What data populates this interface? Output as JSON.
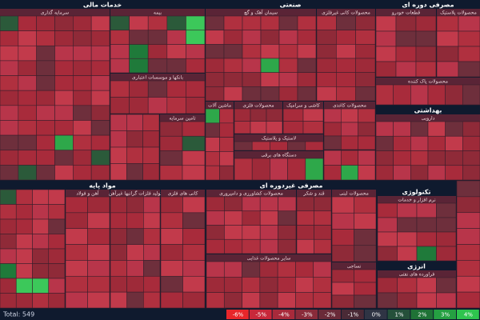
{
  "sectors": [
    {
      "title": "خدمات مالی",
      "groups": [
        {
          "title": "سرمایه گذاری"
        },
        {
          "title": "بیمه"
        },
        {
          "title": "بانکها و موسسات اعتباری"
        },
        {
          "title": "تامین سرمایه"
        }
      ]
    },
    {
      "title": "صنعتی",
      "groups": [
        {
          "title": "سیمان آهک و گچ"
        },
        {
          "title": "محصولات کانی غیرفلزی"
        },
        {
          "title": "ماشین آلات"
        },
        {
          "title": "محصولات فلزی"
        },
        {
          "title": "کاشی و سرامیک"
        },
        {
          "title": "محصولات کاغذی"
        },
        {
          "title": "لاستیک و پلاستیک"
        },
        {
          "title": "دستگاه های برقی"
        }
      ]
    },
    {
      "title": "مصرفی دوره ای",
      "groups": [
        {
          "title": "قطعات خودرو"
        },
        {
          "title": "محصولات پلاستیک"
        },
        {
          "title": "محصولات پاک کننده"
        }
      ]
    },
    {
      "title": "بهداشتی",
      "groups": [
        {
          "title": "دارویی"
        }
      ]
    },
    {
      "title": "مواد پایه",
      "groups": [
        {
          "title": "آهن و فولاد"
        },
        {
          "title": "تولید فلزات گرانبها غیرآهن"
        },
        {
          "title": "کانی های فلزی"
        }
      ]
    },
    {
      "title": "مصرفی غیردوره ای",
      "groups": [
        {
          "title": "محصولات کشاورزی و دامپروری"
        },
        {
          "title": "قند و شکر"
        },
        {
          "title": "محصولات لبنی"
        },
        {
          "title": "سایر محصولات غذایی"
        },
        {
          "title": "نساجی"
        }
      ]
    },
    {
      "title": "تکنولوژی",
      "groups": [
        {
          "title": "نرم افزار و خدمات"
        }
      ]
    },
    {
      "title": "انرژی",
      "groups": [
        {
          "title": "فراورده های نفتی"
        }
      ]
    }
  ],
  "legend": {
    "labels": [
      "-6%",
      "-5%",
      "-4%",
      "-3%",
      "-2%",
      "-1%",
      "0%",
      "1%",
      "2%",
      "3%",
      "4%"
    ]
  },
  "footer": {
    "total": "Total: 549"
  }
}
